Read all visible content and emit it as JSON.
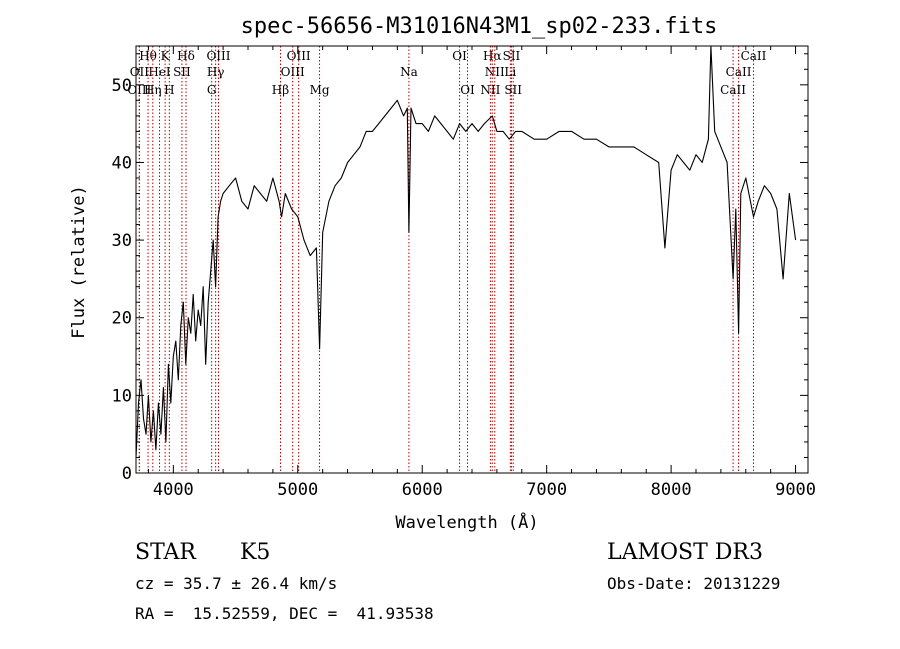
{
  "chart_data": {
    "type": "line",
    "title": "spec-56656-M31016N43M1_sp02-233.fits",
    "xlabel": "Wavelength (Å)",
    "ylabel": "Flux (relative)",
    "xlim": [
      3700,
      9100
    ],
    "ylim": [
      0,
      55
    ],
    "xticks": [
      4000,
      5000,
      6000,
      7000,
      8000,
      9000
    ],
    "yticks": [
      0,
      10,
      20,
      30,
      40,
      50
    ],
    "series": [
      {
        "x": [
          3700,
          3720,
          3740,
          3760,
          3780,
          3800,
          3820,
          3840,
          3860,
          3880,
          3900,
          3920,
          3940,
          3960,
          3980,
          4000,
          4020,
          4040,
          4060,
          4080,
          4100,
          4120,
          4140,
          4160,
          4180,
          4200,
          4220,
          4240,
          4260,
          4280,
          4300,
          4320,
          4340,
          4360,
          4380,
          4400,
          4450,
          4500,
          4550,
          4600,
          4650,
          4700,
          4750,
          4800,
          4850,
          4870,
          4900,
          4950,
          5000,
          5050,
          5100,
          5150,
          5175,
          5200,
          5250,
          5300,
          5350,
          5400,
          5450,
          5500,
          5550,
          5600,
          5650,
          5700,
          5750,
          5800,
          5850,
          5880,
          5893,
          5910,
          5950,
          6000,
          6050,
          6100,
          6150,
          6200,
          6250,
          6300,
          6350,
          6400,
          6450,
          6500,
          6563,
          6600,
          6650,
          6700,
          6750,
          6800,
          6900,
          7000,
          7100,
          7200,
          7300,
          7400,
          7500,
          7600,
          7700,
          7800,
          7900,
          7950,
          8000,
          8050,
          8100,
          8150,
          8200,
          8250,
          8300,
          8320,
          8350,
          8400,
          8450,
          8498,
          8520,
          8542,
          8560,
          8600,
          8662,
          8700,
          8750,
          8800,
          8850,
          8900,
          8950,
          9000
        ],
        "y": [
          2,
          9,
          12,
          7,
          5,
          10,
          4,
          8,
          3,
          9,
          5,
          11,
          4,
          14,
          9,
          15,
          17,
          12,
          19,
          22,
          14,
          20,
          18,
          23,
          17,
          21,
          19,
          24,
          14,
          22,
          26,
          30,
          24,
          33,
          35,
          36,
          37,
          38,
          35,
          34,
          37,
          36,
          35,
          38,
          35,
          33,
          36,
          34,
          33,
          30,
          28,
          29,
          16,
          31,
          35,
          37,
          38,
          40,
          41,
          42,
          44,
          44,
          45,
          46,
          47,
          48,
          46,
          47,
          31,
          47,
          45,
          45,
          44,
          46,
          45,
          44,
          43,
          45,
          44,
          45,
          44,
          45,
          46,
          44,
          44,
          43,
          44,
          44,
          43,
          43,
          44,
          44,
          43,
          43,
          42,
          42,
          42,
          41,
          40,
          29,
          39,
          41,
          40,
          39,
          41,
          40,
          43,
          55,
          44,
          42,
          40,
          25,
          34,
          18,
          36,
          38,
          33,
          35,
          37,
          36,
          34,
          25,
          36,
          30
        ]
      }
    ],
    "spectral_lines": [
      {
        "label": "Hθ",
        "x": 3797,
        "row": 0
      },
      {
        "label": "K",
        "x": 3934,
        "row": 0
      },
      {
        "label": "Hδ",
        "x": 4102,
        "row": 0
      },
      {
        "label": "OIII",
        "x": 4363,
        "row": 0
      },
      {
        "label": "OIII",
        "x": 5007,
        "row": 0
      },
      {
        "label": "OI",
        "x": 6300,
        "row": 0
      },
      {
        "label": "Hα",
        "x": 6563,
        "row": 0
      },
      {
        "label": "SII",
        "x": 6717,
        "row": 0
      },
      {
        "label": "CaII",
        "x": 8662,
        "row": 0
      },
      {
        "label": "OII",
        "x": 3727,
        "row": 1
      },
      {
        "label": "HeI",
        "x": 3889,
        "row": 1
      },
      {
        "label": "SII",
        "x": 4069,
        "row": 1
      },
      {
        "label": "Hγ",
        "x": 4340,
        "row": 1
      },
      {
        "label": "OIII",
        "x": 4959,
        "row": 1
      },
      {
        "label": "Na",
        "x": 5893,
        "row": 1
      },
      {
        "label": "NII",
        "x": 6583,
        "row": 1
      },
      {
        "label": "Li",
        "x": 6708,
        "row": 1
      },
      {
        "label": "CaII",
        "x": 8542,
        "row": 1
      },
      {
        "label": "OIII",
        "x": 3727,
        "row": 2
      },
      {
        "label": "Hη",
        "x": 3835,
        "row": 2
      },
      {
        "label": "H",
        "x": 3968,
        "row": 2
      },
      {
        "label": "G",
        "x": 4308,
        "row": 2
      },
      {
        "label": "Hβ",
        "x": 4861,
        "row": 2
      },
      {
        "label": "Mg",
        "x": 5175,
        "row": 2
      },
      {
        "label": "OI",
        "x": 6364,
        "row": 2
      },
      {
        "label": "NII",
        "x": 6548,
        "row": 2
      },
      {
        "label": "SII",
        "x": 6731,
        "row": 2
      },
      {
        "label": "CaII",
        "x": 8498,
        "row": 2
      }
    ],
    "line_color": "#c00000",
    "grid": false
  },
  "info": {
    "object_class": "STAR",
    "subclass": "K5",
    "survey": "LAMOST DR3",
    "redshift": "cz = 35.7 ± 26.4 km/s",
    "obs_date": "Obs-Date: 20131229",
    "coords": "RA =  15.52559, DEC =  41.93538"
  }
}
